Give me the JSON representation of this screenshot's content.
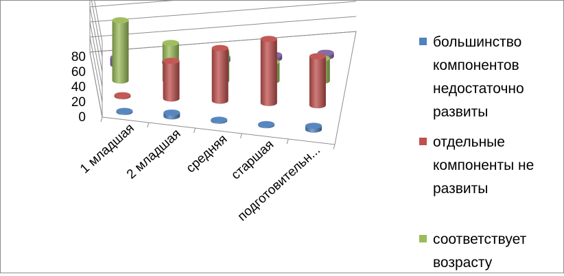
{
  "chart_data": {
    "type": "bar",
    "style": "3d-cylinder",
    "categories": [
      "1 младшая",
      "2 младшая",
      "средняя",
      "старшая",
      "подготовительн..."
    ],
    "series": [
      {
        "name": "большинство компонентов недостаточно развиты",
        "color": "#4f81bd",
        "values": [
          0,
          5,
          0,
          0,
          5
        ]
      },
      {
        "name": "отдельные компоненты не развиты",
        "color": "#c0504d",
        "values": [
          0,
          50,
          70,
          85,
          65
        ]
      },
      {
        "name": "соответствует возрасту",
        "color": "#9bbb59",
        "values": [
          80,
          50,
          40,
          25,
          30
        ]
      },
      {
        "name": "",
        "color": "#8064a2",
        "values": [
          10,
          0,
          5,
          5,
          5
        ]
      }
    ],
    "y_ticks": [
      "0",
      "20",
      "40",
      "60",
      "80"
    ],
    "ylim": [
      0,
      100
    ],
    "grid": true,
    "legend": "right"
  }
}
